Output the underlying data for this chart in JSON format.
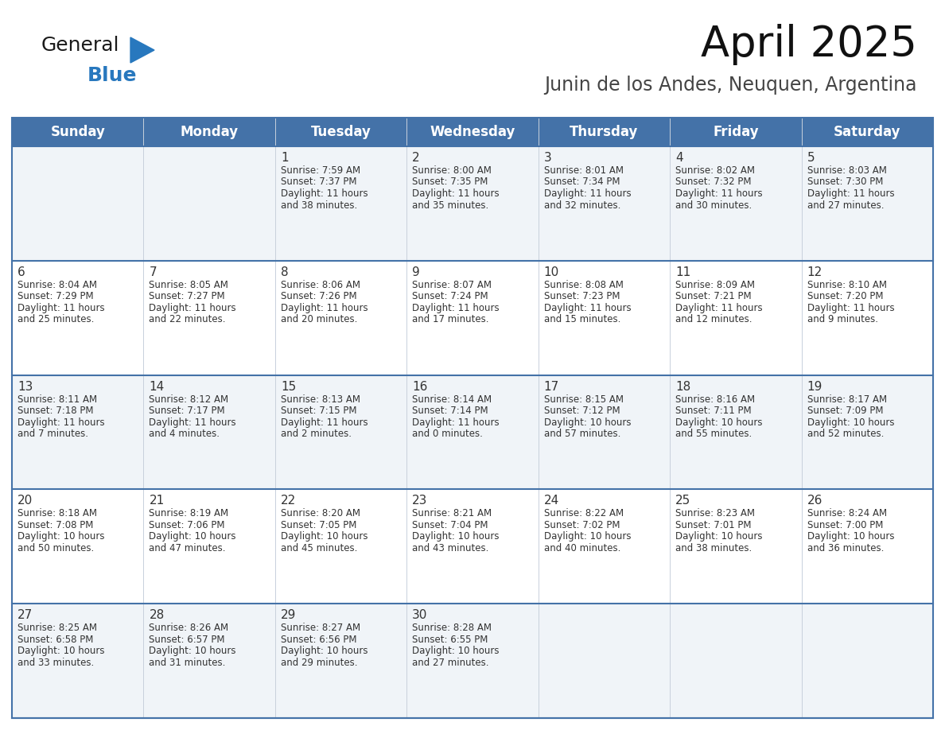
{
  "title": "April 2025",
  "subtitle": "Junin de los Andes, Neuquen, Argentina",
  "header_bg": "#4472a8",
  "header_text_color": "#ffffff",
  "cell_bg_even": "#f0f4f8",
  "cell_bg_odd": "#ffffff",
  "border_color": "#4472a8",
  "text_color": "#333333",
  "day_number_color": "#333333",
  "days_of_week": [
    "Sunday",
    "Monday",
    "Tuesday",
    "Wednesday",
    "Thursday",
    "Friday",
    "Saturday"
  ],
  "calendar_data": [
    [
      {
        "day": "",
        "lines": []
      },
      {
        "day": "",
        "lines": []
      },
      {
        "day": "1",
        "lines": [
          "Sunrise: 7:59 AM",
          "Sunset: 7:37 PM",
          "Daylight: 11 hours",
          "and 38 minutes."
        ]
      },
      {
        "day": "2",
        "lines": [
          "Sunrise: 8:00 AM",
          "Sunset: 7:35 PM",
          "Daylight: 11 hours",
          "and 35 minutes."
        ]
      },
      {
        "day": "3",
        "lines": [
          "Sunrise: 8:01 AM",
          "Sunset: 7:34 PM",
          "Daylight: 11 hours",
          "and 32 minutes."
        ]
      },
      {
        "day": "4",
        "lines": [
          "Sunrise: 8:02 AM",
          "Sunset: 7:32 PM",
          "Daylight: 11 hours",
          "and 30 minutes."
        ]
      },
      {
        "day": "5",
        "lines": [
          "Sunrise: 8:03 AM",
          "Sunset: 7:30 PM",
          "Daylight: 11 hours",
          "and 27 minutes."
        ]
      }
    ],
    [
      {
        "day": "6",
        "lines": [
          "Sunrise: 8:04 AM",
          "Sunset: 7:29 PM",
          "Daylight: 11 hours",
          "and 25 minutes."
        ]
      },
      {
        "day": "7",
        "lines": [
          "Sunrise: 8:05 AM",
          "Sunset: 7:27 PM",
          "Daylight: 11 hours",
          "and 22 minutes."
        ]
      },
      {
        "day": "8",
        "lines": [
          "Sunrise: 8:06 AM",
          "Sunset: 7:26 PM",
          "Daylight: 11 hours",
          "and 20 minutes."
        ]
      },
      {
        "day": "9",
        "lines": [
          "Sunrise: 8:07 AM",
          "Sunset: 7:24 PM",
          "Daylight: 11 hours",
          "and 17 minutes."
        ]
      },
      {
        "day": "10",
        "lines": [
          "Sunrise: 8:08 AM",
          "Sunset: 7:23 PM",
          "Daylight: 11 hours",
          "and 15 minutes."
        ]
      },
      {
        "day": "11",
        "lines": [
          "Sunrise: 8:09 AM",
          "Sunset: 7:21 PM",
          "Daylight: 11 hours",
          "and 12 minutes."
        ]
      },
      {
        "day": "12",
        "lines": [
          "Sunrise: 8:10 AM",
          "Sunset: 7:20 PM",
          "Daylight: 11 hours",
          "and 9 minutes."
        ]
      }
    ],
    [
      {
        "day": "13",
        "lines": [
          "Sunrise: 8:11 AM",
          "Sunset: 7:18 PM",
          "Daylight: 11 hours",
          "and 7 minutes."
        ]
      },
      {
        "day": "14",
        "lines": [
          "Sunrise: 8:12 AM",
          "Sunset: 7:17 PM",
          "Daylight: 11 hours",
          "and 4 minutes."
        ]
      },
      {
        "day": "15",
        "lines": [
          "Sunrise: 8:13 AM",
          "Sunset: 7:15 PM",
          "Daylight: 11 hours",
          "and 2 minutes."
        ]
      },
      {
        "day": "16",
        "lines": [
          "Sunrise: 8:14 AM",
          "Sunset: 7:14 PM",
          "Daylight: 11 hours",
          "and 0 minutes."
        ]
      },
      {
        "day": "17",
        "lines": [
          "Sunrise: 8:15 AM",
          "Sunset: 7:12 PM",
          "Daylight: 10 hours",
          "and 57 minutes."
        ]
      },
      {
        "day": "18",
        "lines": [
          "Sunrise: 8:16 AM",
          "Sunset: 7:11 PM",
          "Daylight: 10 hours",
          "and 55 minutes."
        ]
      },
      {
        "day": "19",
        "lines": [
          "Sunrise: 8:17 AM",
          "Sunset: 7:09 PM",
          "Daylight: 10 hours",
          "and 52 minutes."
        ]
      }
    ],
    [
      {
        "day": "20",
        "lines": [
          "Sunrise: 8:18 AM",
          "Sunset: 7:08 PM",
          "Daylight: 10 hours",
          "and 50 minutes."
        ]
      },
      {
        "day": "21",
        "lines": [
          "Sunrise: 8:19 AM",
          "Sunset: 7:06 PM",
          "Daylight: 10 hours",
          "and 47 minutes."
        ]
      },
      {
        "day": "22",
        "lines": [
          "Sunrise: 8:20 AM",
          "Sunset: 7:05 PM",
          "Daylight: 10 hours",
          "and 45 minutes."
        ]
      },
      {
        "day": "23",
        "lines": [
          "Sunrise: 8:21 AM",
          "Sunset: 7:04 PM",
          "Daylight: 10 hours",
          "and 43 minutes."
        ]
      },
      {
        "day": "24",
        "lines": [
          "Sunrise: 8:22 AM",
          "Sunset: 7:02 PM",
          "Daylight: 10 hours",
          "and 40 minutes."
        ]
      },
      {
        "day": "25",
        "lines": [
          "Sunrise: 8:23 AM",
          "Sunset: 7:01 PM",
          "Daylight: 10 hours",
          "and 38 minutes."
        ]
      },
      {
        "day": "26",
        "lines": [
          "Sunrise: 8:24 AM",
          "Sunset: 7:00 PM",
          "Daylight: 10 hours",
          "and 36 minutes."
        ]
      }
    ],
    [
      {
        "day": "27",
        "lines": [
          "Sunrise: 8:25 AM",
          "Sunset: 6:58 PM",
          "Daylight: 10 hours",
          "and 33 minutes."
        ]
      },
      {
        "day": "28",
        "lines": [
          "Sunrise: 8:26 AM",
          "Sunset: 6:57 PM",
          "Daylight: 10 hours",
          "and 31 minutes."
        ]
      },
      {
        "day": "29",
        "lines": [
          "Sunrise: 8:27 AM",
          "Sunset: 6:56 PM",
          "Daylight: 10 hours",
          "and 29 minutes."
        ]
      },
      {
        "day": "30",
        "lines": [
          "Sunrise: 8:28 AM",
          "Sunset: 6:55 PM",
          "Daylight: 10 hours",
          "and 27 minutes."
        ]
      },
      {
        "day": "",
        "lines": []
      },
      {
        "day": "",
        "lines": []
      },
      {
        "day": "",
        "lines": []
      }
    ]
  ],
  "logo_text_general": "General",
  "logo_text_blue": "Blue",
  "logo_color_general": "#1a1a1a",
  "logo_color_blue": "#2878be",
  "logo_triangle_color": "#2878be",
  "title_fontsize": 38,
  "subtitle_fontsize": 17,
  "header_fontsize": 12,
  "day_num_fontsize": 11,
  "cell_text_fontsize": 8.5
}
